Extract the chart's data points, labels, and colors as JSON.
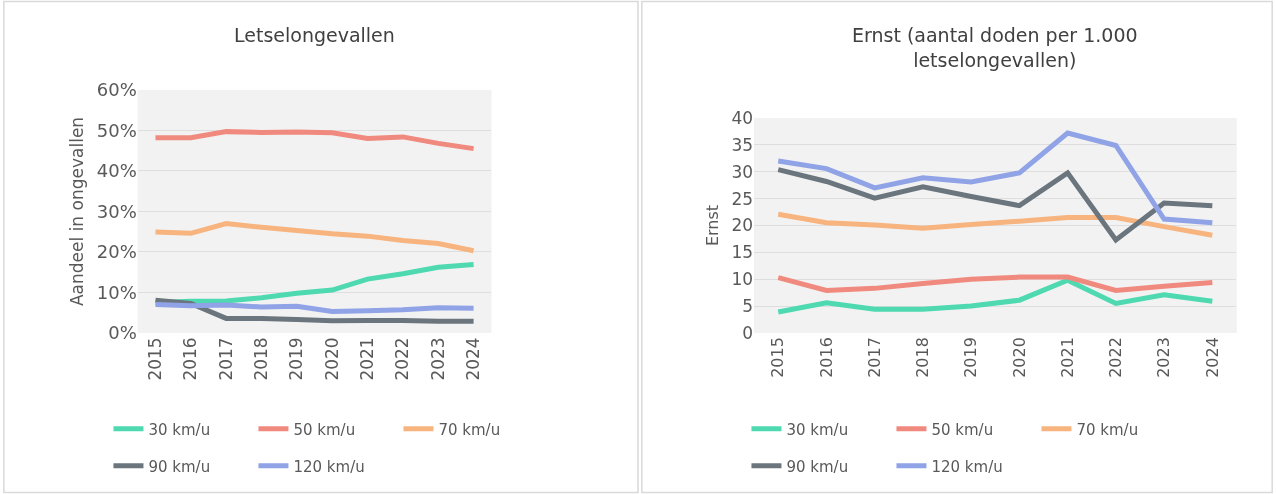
{
  "chart_data": [
    {
      "type": "line",
      "title": "Letselongevallen",
      "ylabel": "Aandeel in ongevallen",
      "categories": [
        "2015",
        "2016",
        "2017",
        "2018",
        "2019",
        "2020",
        "2021",
        "2022",
        "2023",
        "2024"
      ],
      "series": [
        {
          "name": "30 km/u",
          "color": "#4ed9b0",
          "values": [
            7.5,
            7.8,
            7.9,
            8.7,
            9.8,
            10.6,
            13.3,
            14.6,
            16.2,
            16.9
          ]
        },
        {
          "name": "50 km/u",
          "color": "#f08a7e",
          "values": [
            48.2,
            48.2,
            49.7,
            49.5,
            49.6,
            49.4,
            48.0,
            48.4,
            46.8,
            45.5
          ]
        },
        {
          "name": "70 km/u",
          "color": "#f7b47e",
          "values": [
            24.9,
            24.6,
            27.0,
            26.1,
            25.3,
            24.5,
            23.9,
            22.8,
            22.1,
            20.3
          ]
        },
        {
          "name": "90 km/u",
          "color": "#6b757e",
          "values": [
            8.1,
            7.3,
            3.6,
            3.6,
            3.3,
            3.0,
            3.1,
            3.1,
            2.9,
            2.9
          ]
        },
        {
          "name": "120 km/u",
          "color": "#8fa3e6",
          "values": [
            7.0,
            6.7,
            6.9,
            6.4,
            6.6,
            5.3,
            5.5,
            5.7,
            6.2,
            6.1
          ]
        }
      ],
      "ylim": [
        0,
        60
      ],
      "yticks": [
        {
          "value": 0,
          "label": "0%"
        },
        {
          "value": 10,
          "label": "10%"
        },
        {
          "value": 20,
          "label": "20%"
        },
        {
          "value": 30,
          "label": "30%"
        },
        {
          "value": 40,
          "label": "40%"
        },
        {
          "value": 50,
          "label": "50%"
        },
        {
          "value": 60,
          "label": "60%"
        }
      ],
      "grid": "y",
      "legend": "bottom",
      "marker": "none",
      "line_style": "solid"
    },
    {
      "type": "line",
      "title": "Ernst (aantal doden per 1.000 letselongevallen)",
      "ylabel": "Ernst",
      "categories": [
        "2015",
        "2016",
        "2017",
        "2018",
        "2019",
        "2020",
        "2021",
        "2022",
        "2023",
        "2024"
      ],
      "series": [
        {
          "name": "30 km/u",
          "color": "#4ed9b0",
          "values": [
            3.9,
            5.6,
            4.4,
            4.4,
            5.0,
            6.1,
            9.8,
            5.5,
            7.1,
            5.9
          ]
        },
        {
          "name": "50 km/u",
          "color": "#f08a7e",
          "values": [
            10.3,
            7.9,
            8.3,
            9.2,
            10.0,
            10.4,
            10.4,
            7.9,
            8.7,
            9.4
          ]
        },
        {
          "name": "70 km/u",
          "color": "#f7b47e",
          "values": [
            22.1,
            20.5,
            20.1,
            19.5,
            20.2,
            20.8,
            21.5,
            21.5,
            19.8,
            18.2
          ]
        },
        {
          "name": "90 km/u",
          "color": "#6b757e",
          "values": [
            30.4,
            28.2,
            25.1,
            27.2,
            25.4,
            23.7,
            29.8,
            17.3,
            24.2,
            23.7
          ]
        },
        {
          "name": "120 km/u",
          "color": "#8fa3e6",
          "values": [
            32.0,
            30.6,
            27.0,
            28.9,
            28.1,
            29.8,
            37.2,
            34.9,
            21.2,
            20.5
          ]
        }
      ],
      "ylim": [
        0,
        40
      ],
      "yticks": [
        0,
        5,
        10,
        15,
        20,
        25,
        30,
        35,
        40
      ],
      "grid": "y",
      "legend": "bottom",
      "marker": "none",
      "line_style": "solid"
    }
  ]
}
